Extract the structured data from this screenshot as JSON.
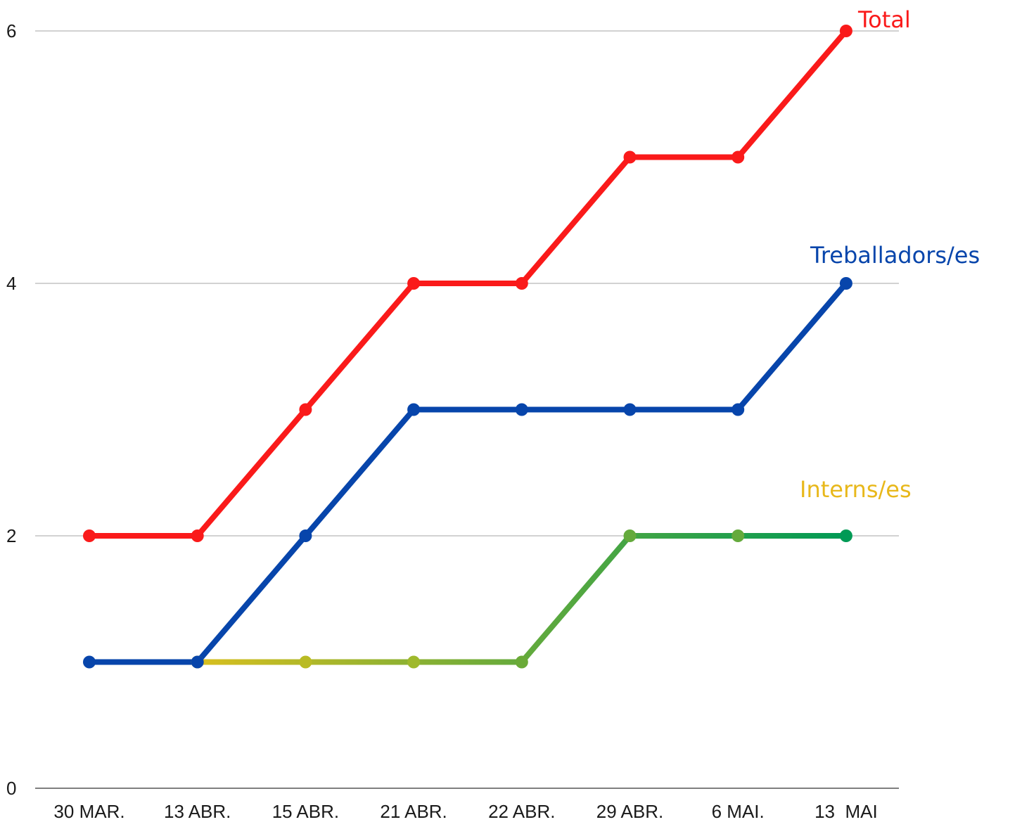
{
  "chart_data": {
    "type": "line",
    "categories": [
      "30 MAR.",
      "13 ABR.",
      "15 ABR.",
      "21 ABR.",
      "22 ABR.",
      "29 ABR.",
      "6 MAI.",
      "13  MAI"
    ],
    "series": [
      {
        "name": "Total",
        "values": [
          2,
          2,
          3,
          4,
          4,
          5,
          5,
          6
        ],
        "color": "#fa1a1a",
        "gradient": [
          "#fa1a1a",
          "#fa1a1a"
        ]
      },
      {
        "name": "Treballadors/es",
        "values": [
          1,
          1,
          2,
          3,
          3,
          3,
          3,
          4
        ],
        "color": "#0745ab",
        "gradient": [
          "#0745ab",
          "#0745ab"
        ]
      },
      {
        "name": "Interns/es",
        "values": [
          null,
          1,
          1,
          1,
          1,
          2,
          2,
          2
        ],
        "color": "#e8b81b",
        "gradient": [
          "#d8bf1f",
          "#64aa3c",
          "#009a55"
        ]
      }
    ],
    "ylim": [
      0,
      6
    ],
    "yticks": [
      0,
      2,
      4,
      6
    ],
    "grid": true,
    "legend": "inline-right"
  }
}
